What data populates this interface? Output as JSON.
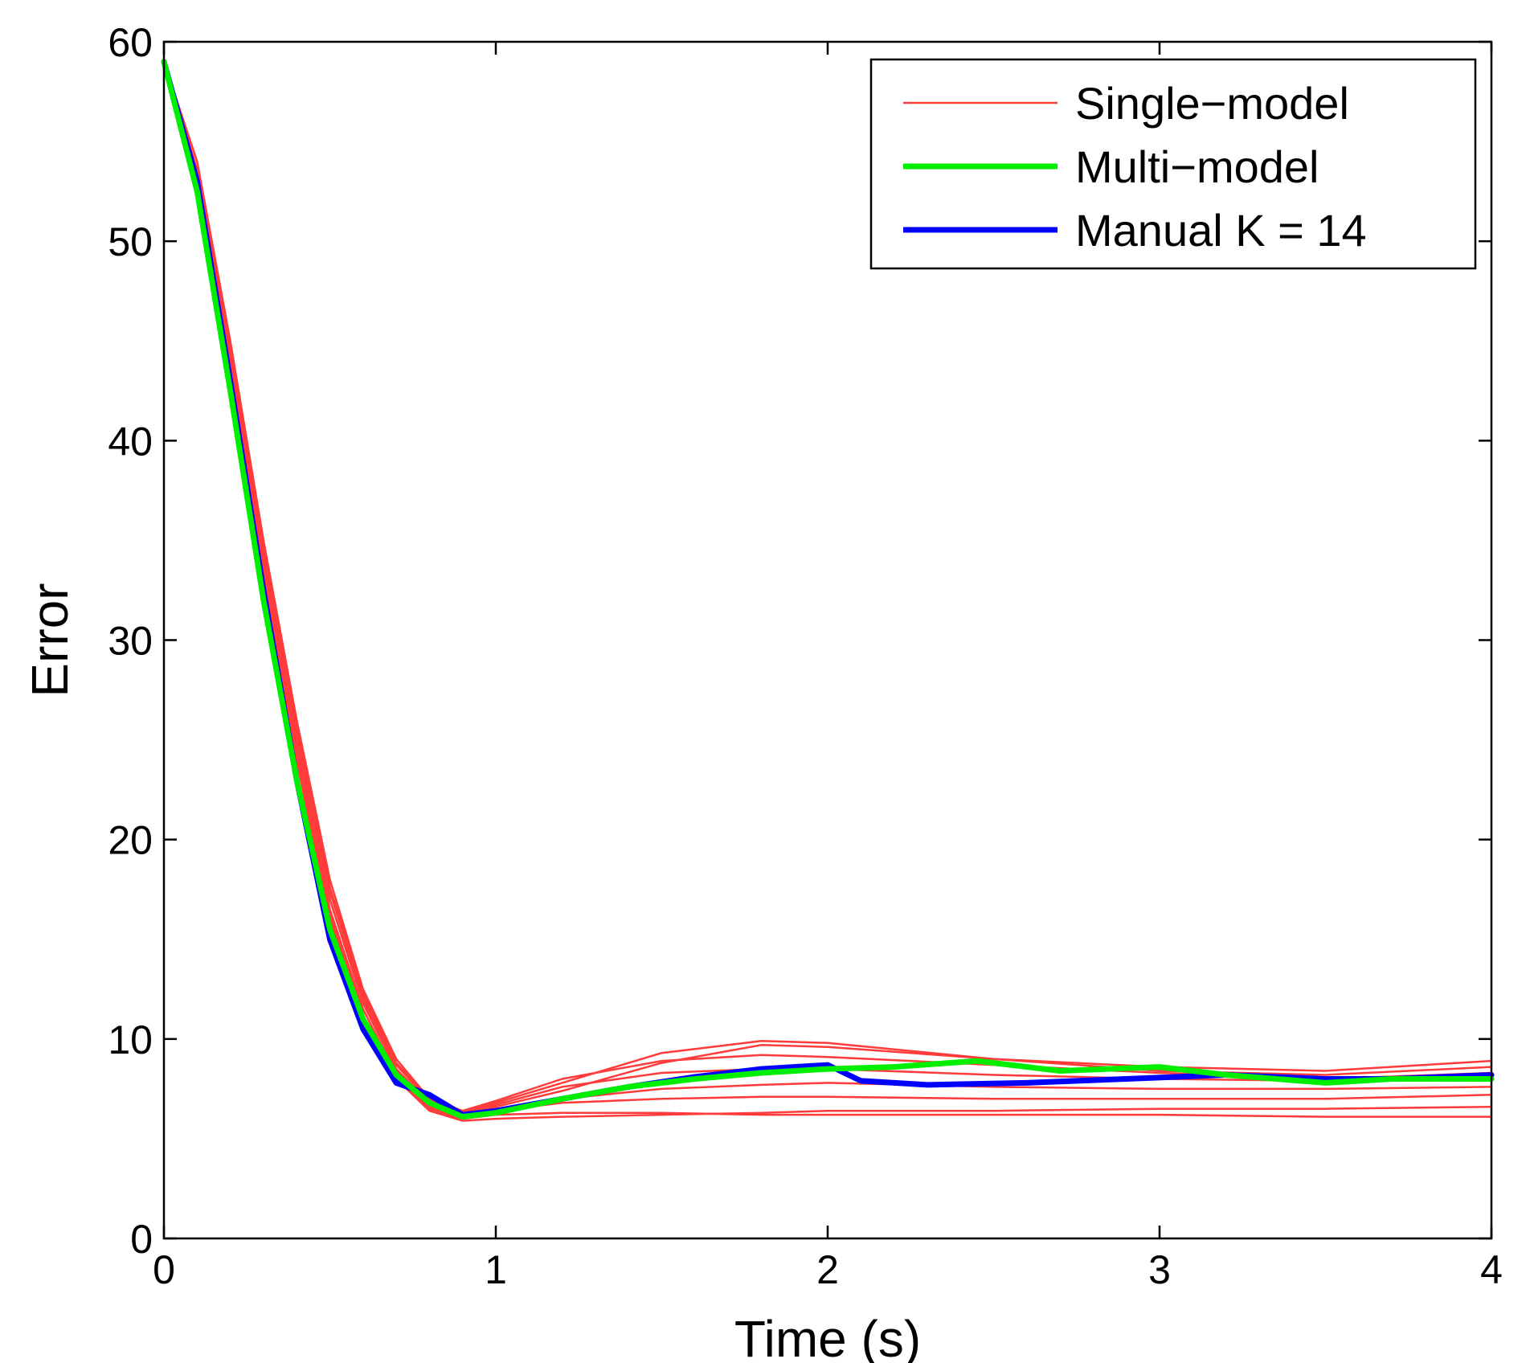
{
  "chart_data": {
    "type": "line",
    "xlabel": "Time (s)",
    "ylabel": "Error",
    "xlim": [
      0,
      4
    ],
    "ylim": [
      0,
      60
    ],
    "xticks": [
      "0",
      "1",
      "2",
      "3",
      "4"
    ],
    "yticks": [
      "0",
      "10",
      "20",
      "30",
      "40",
      "50",
      "60"
    ],
    "grid": false,
    "legend_position": "top-right",
    "legend": [
      {
        "label": "Single−model",
        "color": "#ff3b3b"
      },
      {
        "label": "Multi−model",
        "color": "#00ee00"
      },
      {
        "label": "Manual K = 14",
        "color": "#0000ff"
      }
    ],
    "series": [
      {
        "name": "Single−model",
        "color": "#ff3b3b",
        "x": [
          0,
          0.1,
          0.2,
          0.3,
          0.4,
          0.5,
          0.6,
          0.7,
          0.8,
          0.9,
          1.0,
          1.2,
          1.5,
          1.8,
          2.0,
          2.5,
          3.0,
          3.5,
          4.0
        ],
        "values": [
          59,
          53,
          43,
          33,
          24,
          16,
          11,
          8,
          6.5,
          6,
          6.2,
          6.3,
          6.3,
          6.2,
          6.2,
          6.2,
          6.2,
          6.1,
          6.1
        ]
      },
      {
        "name": "Single−model",
        "color": "#ff3b3b",
        "x": [
          0,
          0.1,
          0.2,
          0.3,
          0.4,
          0.5,
          0.6,
          0.7,
          0.8,
          0.9,
          1.0,
          1.2,
          1.5,
          1.8,
          2.0,
          2.5,
          3.0,
          3.5,
          4.0
        ],
        "values": [
          59,
          53.5,
          44,
          34,
          25,
          17,
          12,
          8.5,
          6.8,
          6.2,
          6.6,
          7.4,
          8.8,
          9.7,
          9.6,
          9.0,
          8.6,
          8.4,
          8.9
        ]
      },
      {
        "name": "Single−model",
        "color": "#ff3b3b",
        "x": [
          0,
          0.1,
          0.2,
          0.3,
          0.4,
          0.5,
          0.6,
          0.7,
          0.8,
          0.9,
          1.0,
          1.2,
          1.5,
          1.8,
          2.0,
          2.5,
          3.0,
          3.5,
          4.0
        ],
        "values": [
          59,
          54,
          45,
          35,
          26,
          18,
          12.5,
          9,
          7,
          6.3,
          6.8,
          7.8,
          9.3,
          9.9,
          9.8,
          9.0,
          8.4,
          8.2,
          8.6
        ]
      },
      {
        "name": "Single−model",
        "color": "#ff3b3b",
        "x": [
          0,
          0.1,
          0.2,
          0.3,
          0.4,
          0.5,
          0.6,
          0.7,
          0.8,
          0.9,
          1.0,
          1.2,
          1.5,
          1.8,
          2.0,
          2.5,
          3.0,
          3.5,
          4.0
        ],
        "values": [
          59,
          53,
          43.5,
          33.5,
          24.5,
          16.5,
          11.5,
          8.2,
          6.6,
          6.1,
          6.4,
          6.8,
          7.0,
          7.1,
          7.1,
          7.0,
          7.0,
          7.0,
          7.2
        ]
      },
      {
        "name": "Single−model",
        "color": "#ff3b3b",
        "x": [
          0,
          0.1,
          0.2,
          0.3,
          0.4,
          0.5,
          0.6,
          0.7,
          0.8,
          0.9,
          1.0,
          1.2,
          1.5,
          1.8,
          2.0,
          2.5,
          3.0,
          3.5,
          4.0
        ],
        "values": [
          59,
          53.2,
          43.8,
          33.8,
          24.8,
          17,
          11.8,
          8.4,
          6.7,
          6.2,
          6.5,
          7.0,
          7.5,
          7.7,
          7.8,
          7.6,
          7.5,
          7.5,
          7.6
        ]
      },
      {
        "name": "Single−model",
        "color": "#ff3b3b",
        "x": [
          0,
          0.1,
          0.2,
          0.3,
          0.4,
          0.5,
          0.6,
          0.7,
          0.8,
          0.9,
          1.0,
          1.2,
          1.5,
          1.8,
          2.0,
          2.5,
          3.0,
          3.5,
          4.0
        ],
        "values": [
          59,
          53.4,
          44.2,
          34.3,
          25.3,
          17.4,
          12.2,
          8.7,
          6.9,
          6.3,
          6.7,
          7.6,
          8.3,
          8.5,
          8.5,
          8.2,
          8.0,
          7.9,
          8.1
        ]
      },
      {
        "name": "Single−model",
        "color": "#ff3b3b",
        "x": [
          0,
          0.1,
          0.2,
          0.3,
          0.4,
          0.5,
          0.6,
          0.7,
          0.8,
          0.9,
          1.0,
          1.2,
          1.5,
          1.8,
          2.0,
          2.5,
          3.0,
          3.5,
          4.0
        ],
        "values": [
          59,
          52.8,
          43.2,
          33.2,
          24.2,
          16.2,
          11.2,
          8.0,
          6.4,
          5.9,
          6.0,
          6.1,
          6.2,
          6.3,
          6.4,
          6.4,
          6.5,
          6.5,
          6.6
        ]
      },
      {
        "name": "Single−model",
        "color": "#ff3b3b",
        "x": [
          0,
          0.1,
          0.2,
          0.3,
          0.4,
          0.5,
          0.6,
          0.7,
          0.8,
          0.9,
          1.0,
          1.2,
          1.5,
          1.8,
          2.0,
          2.5,
          3.0,
          3.5,
          4.0
        ],
        "values": [
          59,
          53.6,
          44.6,
          34.6,
          25.6,
          17.6,
          12.4,
          8.8,
          7.0,
          6.4,
          6.9,
          8.0,
          8.9,
          9.2,
          9.1,
          8.7,
          8.3,
          8.0,
          8.3
        ]
      }
    ],
    "series_main": [
      {
        "name": "Multi−model",
        "color": "#00ee00",
        "x": [
          0,
          0.1,
          0.2,
          0.3,
          0.4,
          0.5,
          0.6,
          0.7,
          0.8,
          0.9,
          1.0,
          1.2,
          1.4,
          1.6,
          1.8,
          2.0,
          2.2,
          2.45,
          2.7,
          3.0,
          3.2,
          3.5,
          3.7,
          4.0
        ],
        "values": [
          59,
          52.5,
          42.5,
          32,
          23,
          15.5,
          11,
          8.2,
          6.8,
          6.1,
          6.3,
          7.0,
          7.6,
          8.0,
          8.3,
          8.5,
          8.6,
          8.9,
          8.4,
          8.6,
          8.2,
          7.8,
          8.0,
          8.0
        ]
      },
      {
        "name": "Manual K = 14",
        "color": "#0000ff",
        "x": [
          0,
          0.1,
          0.2,
          0.3,
          0.4,
          0.5,
          0.6,
          0.7,
          0.8,
          0.9,
          1.0,
          1.2,
          1.4,
          1.6,
          1.8,
          2.0,
          2.1,
          2.3,
          2.6,
          2.9,
          3.2,
          3.5,
          3.7,
          4.0
        ],
        "values": [
          59,
          53,
          43,
          32.5,
          23,
          15,
          10.5,
          7.8,
          7.2,
          6.2,
          6.4,
          7.0,
          7.6,
          8.1,
          8.5,
          8.7,
          7.9,
          7.7,
          7.8,
          8.0,
          8.2,
          8.0,
          8.0,
          8.2
        ]
      }
    ]
  }
}
